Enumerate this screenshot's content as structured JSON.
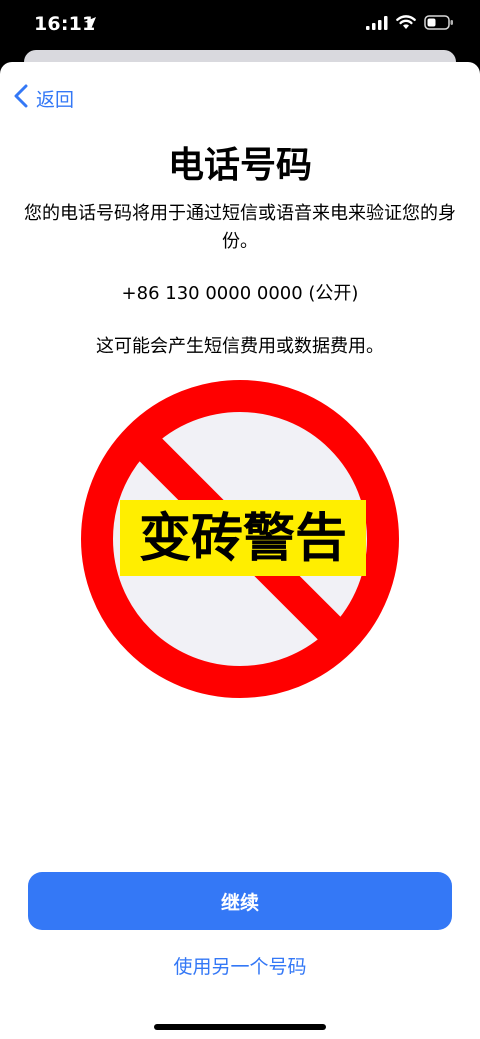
{
  "status_bar": {
    "time": "16:11",
    "icons": [
      "location-arrow-icon",
      "signal-icon",
      "wifi-icon",
      "battery-icon"
    ]
  },
  "nav": {
    "back_label": "返回"
  },
  "content": {
    "title": "电话号码",
    "description": "您的电话号码将用于通过短信或语音来电来验证您的身份。",
    "phone_number": "+86 130 0000 0000 (公开)",
    "charges_note": "这可能会产生短信费用或数据费用。"
  },
  "warning": {
    "label": "变砖警告",
    "ring_color": "#ff0000",
    "banner_color": "#ffee00"
  },
  "actions": {
    "continue_label": "继续",
    "alt_number_label": "使用另一个号码"
  },
  "colors": {
    "accent": "#3478f6",
    "sheet_background": "#ffffff",
    "backdrop": "#000000"
  }
}
